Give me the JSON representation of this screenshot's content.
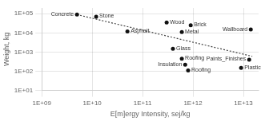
{
  "chart_data": {
    "type": "scatter",
    "xlabel": "E[m]ergy Intensity, sej/kg",
    "ylabel": "Weight, kg",
    "log": true,
    "grid": true,
    "xlim": [
      1000000000.0,
      20000000000000.0
    ],
    "ylim": [
      10.0,
      200000.0
    ],
    "xticks": [
      {
        "value": 1000000000.0,
        "label": "1E+09"
      },
      {
        "value": 10000000000.0,
        "label": "1E+10"
      },
      {
        "value": 100000000000.0,
        "label": "1E+11"
      },
      {
        "value": 1000000000000.0,
        "label": "1E+12"
      },
      {
        "value": 10000000000000.0,
        "label": "1E+13"
      }
    ],
    "yticks": [
      {
        "value": 10.0,
        "label": "1E+01"
      },
      {
        "value": 100.0,
        "label": "1E+02"
      },
      {
        "value": 1000.0,
        "label": "1E+03"
      },
      {
        "value": 10000.0,
        "label": "1E+04"
      },
      {
        "value": 100000.0,
        "label": "1E+05"
      }
    ],
    "series": [
      {
        "type": "scatter",
        "color": "#111111",
        "marker": "circle",
        "x": [
          5000000000.0,
          12000000000.0,
          50000000000.0,
          300000000000.0,
          600000000000.0,
          900000000000.0,
          400000000000.0,
          600000000000.0,
          700000000000.0,
          800000000000.0,
          9000000000000.0,
          13000000000000.0,
          14000000000000.0
        ],
        "values": [
          90000.0,
          70000.0,
          12000.0,
          35000.0,
          11000.0,
          25000.0,
          1500.0,
          450.0,
          220.0,
          110.0,
          150.0,
          400.0,
          15000.0
        ],
        "annotations": [
          "Concrete",
          "Stone",
          "Asphalt",
          "Wood",
          "Metal",
          "Brick",
          "Glass",
          "Roofing",
          "Insulation",
          "Roofing",
          "Plastic",
          "Paints_Finishes",
          "Wallboard"
        ]
      },
      {
        "type": "line",
        "color": "#444444",
        "line_style": "dotted",
        "x": [
          5000000000.0,
          15000000000000.0
        ],
        "values": [
          90000.0,
          600.0
        ]
      }
    ]
  }
}
